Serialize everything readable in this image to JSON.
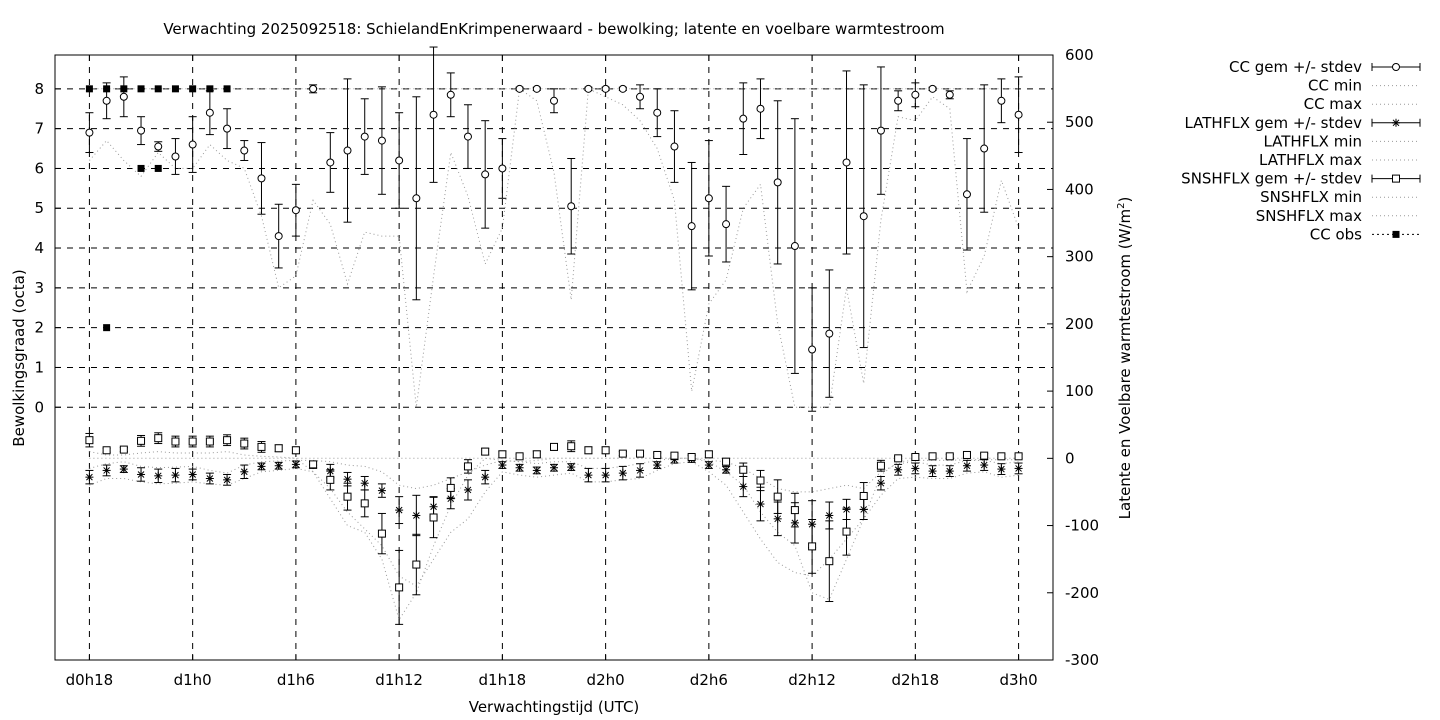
{
  "chart_data": {
    "type": "line",
    "title": "Verwachting 2025092518: SchielandEnKrimpenerwaard - bewolking; latente en voelbare warmtestroom",
    "xlabel": "Verwachtingstijd (UTC)",
    "ylabel": "Bewolkingsgraad (octa)",
    "y2label": "Latente en Voelbare warmtestroom (W/m",
    "y2label_sup": "2",
    "y2label_end": ")",
    "x_ticks": [
      {
        "hour": 18,
        "label": "d0h18"
      },
      {
        "hour": 24,
        "label": "d1h0"
      },
      {
        "hour": 30,
        "label": "d1h6"
      },
      {
        "hour": 36,
        "label": "d1h12"
      },
      {
        "hour": 42,
        "label": "d1h18"
      },
      {
        "hour": 48,
        "label": "d2h0"
      },
      {
        "hour": 54,
        "label": "d2h6"
      },
      {
        "hour": 60,
        "label": "d2h12"
      },
      {
        "hour": 66,
        "label": "d2h18"
      },
      {
        "hour": 72,
        "label": "d3h0"
      }
    ],
    "xlim": [
      16,
      74
    ],
    "y1_ticks": [
      "0",
      "1",
      "2",
      "3",
      "4",
      "5",
      "6",
      "7",
      "8"
    ],
    "y1_range_mapped": [
      -6.35,
      8.85
    ],
    "y2_ticks": [
      "-300",
      "-200",
      "-100",
      "0",
      "100",
      "200",
      "300",
      "400",
      "500",
      "600"
    ],
    "y2lim": [
      -300,
      600
    ],
    "grid": true,
    "legend_placement": "outside-right",
    "legend": [
      {
        "label": "CC gem +/- stdev",
        "style": "errorbar-circle"
      },
      {
        "label": "CC min",
        "style": "dotted"
      },
      {
        "label": "CC max",
        "style": "dotted"
      },
      {
        "label": "LATHFLX gem +/- stdev",
        "style": "errorbar-star"
      },
      {
        "label": "LATHFLX min",
        "style": "dotted"
      },
      {
        "label": "LATHFLX max",
        "style": "dotted"
      },
      {
        "label": "SNSHFLX gem +/- stdev",
        "style": "errorbar-square"
      },
      {
        "label": "SNSHFLX min",
        "style": "dotted"
      },
      {
        "label": "SNSHFLX max",
        "style": "dotted"
      },
      {
        "label": "CC obs",
        "style": "filled-square-dotted"
      }
    ],
    "x_hours": [
      18,
      19,
      20,
      21,
      22,
      23,
      24,
      25,
      26,
      27,
      28,
      29,
      30,
      31,
      32,
      33,
      34,
      35,
      36,
      37,
      38,
      39,
      40,
      41,
      42,
      43,
      44,
      45,
      46,
      47,
      48,
      49,
      50,
      51,
      52,
      53,
      54,
      55,
      56,
      57,
      58,
      59,
      60,
      61,
      62,
      63,
      64,
      65,
      66,
      67,
      68,
      69,
      70,
      71,
      72
    ],
    "series": [
      {
        "name": "CC gem +/- stdev",
        "axis": "y1",
        "mean": [
          6.9,
          7.7,
          7.8,
          6.95,
          6.55,
          6.3,
          6.6,
          7.4,
          7.0,
          6.45,
          5.75,
          4.3,
          4.95,
          8.0,
          6.15,
          6.45,
          6.8,
          6.7,
          6.2,
          5.25,
          7.35,
          7.85,
          6.8,
          5.85,
          6.0,
          8.0,
          8.0,
          7.7,
          5.05,
          8.0,
          8.0,
          8.0,
          7.8,
          7.4,
          6.55,
          4.55,
          5.25,
          4.6,
          7.25,
          7.5,
          5.65,
          4.05,
          1.45,
          1.85,
          6.15,
          4.8,
          6.95,
          7.7,
          7.85,
          8.0,
          7.85,
          5.35,
          6.5,
          7.7,
          7.35
        ],
        "stdev": [
          0.5,
          0.45,
          0.5,
          0.35,
          0.12,
          0.45,
          0.7,
          0.55,
          0.5,
          0.25,
          0.9,
          0.8,
          0.65,
          0.1,
          0.75,
          1.8,
          0.95,
          1.35,
          1.2,
          2.55,
          1.7,
          0.55,
          0.8,
          1.35,
          0.75,
          0.04,
          0.04,
          0.3,
          1.2,
          0.04,
          0.04,
          0.04,
          0.3,
          0.6,
          0.9,
          1.6,
          1.45,
          0.95,
          0.9,
          0.75,
          2.05,
          3.2,
          1.55,
          1.6,
          2.3,
          3.3,
          1.6,
          0.25,
          0.3,
          0.04,
          0.1,
          1.4,
          1.6,
          0.55,
          0.95
        ]
      },
      {
        "name": "CC min",
        "axis": "y1",
        "values": [
          6.2,
          6.7,
          6.2,
          5.8,
          6.4,
          6.0,
          6.0,
          6.6,
          6.2,
          6.0,
          4.8,
          3.0,
          3.3,
          5.2,
          4.6,
          3.1,
          4.4,
          4.3,
          4.3,
          0.0,
          3.3,
          6.4,
          5.3,
          3.6,
          4.5,
          8.0,
          7.7,
          5.9,
          2.7,
          8.0,
          7.8,
          7.6,
          7.2,
          6.5,
          5.2,
          0.4,
          2.6,
          3.2,
          5.0,
          5.6,
          2.1,
          0.0,
          0.0,
          0.0,
          3.0,
          0.6,
          4.7,
          7.3,
          7.2,
          7.8,
          7.5,
          2.9,
          3.8,
          5.7,
          4.5
        ]
      },
      {
        "name": "CC max",
        "axis": "y1",
        "values": [
          8,
          8,
          8,
          8,
          8,
          8,
          8,
          8,
          8,
          8,
          8,
          8,
          8,
          8,
          8,
          8,
          8,
          8,
          8,
          8,
          8,
          8,
          8,
          8,
          8,
          8,
          8,
          8,
          8,
          8,
          8,
          8,
          8,
          8,
          8,
          8,
          8,
          8,
          8,
          8,
          8,
          8,
          8,
          8,
          8,
          8,
          8,
          8,
          8,
          8,
          8,
          8,
          8,
          8,
          8
        ]
      },
      {
        "name": "LATHFLX gem +/- stdev",
        "axis": "y2",
        "mean": [
          -28,
          -18,
          -16,
          -24,
          -26,
          -25,
          -24,
          -30,
          -32,
          -20,
          -12,
          -11,
          -9,
          -10,
          -19,
          -31,
          -37,
          -48,
          -77,
          -85,
          -72,
          -60,
          -47,
          -28,
          -10,
          -14,
          -18,
          -14,
          -13,
          -25,
          -25,
          -22,
          -18,
          -10,
          -2,
          -1,
          -10,
          -17,
          -42,
          -68,
          -90,
          -96,
          -98,
          -85,
          -76,
          -76,
          -37,
          -17,
          -15,
          -19,
          -19,
          -11,
          -10,
          -16,
          -15
        ],
        "stdev": [
          10,
          8,
          5,
          10,
          10,
          10,
          8,
          8,
          8,
          10,
          5,
          5,
          5,
          5,
          10,
          10,
          10,
          10,
          20,
          30,
          15,
          15,
          15,
          10,
          5,
          5,
          5,
          5,
          5,
          10,
          10,
          10,
          10,
          5,
          5,
          5,
          5,
          5,
          15,
          25,
          25,
          30,
          35,
          20,
          15,
          15,
          10,
          8,
          8,
          8,
          8,
          8,
          8,
          8,
          8
        ]
      },
      {
        "name": "LATHFLX min",
        "axis": "y2",
        "values": [
          -40,
          -30,
          -30,
          -35,
          -38,
          -37,
          -35,
          -38,
          -40,
          -30,
          -20,
          -18,
          -15,
          -20,
          -45,
          -80,
          -105,
          -130,
          -175,
          -190,
          -150,
          -110,
          -90,
          -50,
          -20,
          -25,
          -28,
          -25,
          -22,
          -35,
          -35,
          -32,
          -30,
          -18,
          -8,
          -5,
          -20,
          -40,
          -80,
          -120,
          -155,
          -170,
          -175,
          -150,
          -120,
          -90,
          -55,
          -30,
          -28,
          -30,
          -30,
          -22,
          -20,
          -28,
          -25
        ]
      },
      {
        "name": "LATHFLX max",
        "axis": "y2",
        "values": [
          -15,
          -8,
          -5,
          -12,
          -14,
          -13,
          -12,
          -18,
          -22,
          -10,
          -5,
          -4,
          -3,
          -3,
          -5,
          -10,
          -12,
          -20,
          -40,
          -45,
          -40,
          -30,
          -20,
          -10,
          -3,
          -5,
          -8,
          -5,
          -5,
          -15,
          -15,
          -12,
          -8,
          -3,
          0,
          0,
          -3,
          -5,
          -15,
          -30,
          -45,
          -50,
          -50,
          -45,
          -40,
          -45,
          -20,
          -8,
          -5,
          -10,
          -10,
          -3,
          -3,
          -8,
          -5
        ]
      },
      {
        "name": "SNSHFLX gem +/- stdev",
        "axis": "y2",
        "mean": [
          27,
          12,
          13,
          26,
          30,
          25,
          25,
          25,
          27,
          22,
          17,
          15,
          12,
          -9,
          -32,
          -57,
          -67,
          -112,
          -192,
          -158,
          -88,
          -44,
          -12,
          10,
          6,
          3,
          6,
          17,
          18,
          12,
          12,
          7,
          7,
          5,
          4,
          2,
          6,
          -5,
          -17,
          -33,
          -57,
          -77,
          -131,
          -153,
          -109,
          -56,
          -11,
          0,
          2,
          3,
          3,
          5,
          4,
          3,
          3
        ],
        "stdev": [
          10,
          3,
          3,
          8,
          8,
          8,
          8,
          8,
          8,
          8,
          8,
          5,
          5,
          5,
          15,
          20,
          20,
          30,
          55,
          45,
          30,
          15,
          10,
          5,
          5,
          3,
          5,
          5,
          8,
          5,
          5,
          3,
          3,
          3,
          3,
          3,
          5,
          5,
          10,
          15,
          25,
          25,
          40,
          60,
          35,
          20,
          8,
          3,
          3,
          3,
          3,
          3,
          3,
          3,
          3
        ]
      },
      {
        "name": "SNSHFLX min",
        "axis": "y2",
        "values": [
          10,
          5,
          5,
          8,
          10,
          8,
          8,
          8,
          10,
          5,
          3,
          2,
          0,
          -20,
          -60,
          -100,
          -110,
          -150,
          -240,
          -200,
          -130,
          -70,
          -25,
          0,
          -3,
          -5,
          -3,
          0,
          0,
          0,
          0,
          0,
          0,
          0,
          0,
          0,
          -5,
          -20,
          -40,
          -80,
          -110,
          -130,
          -200,
          -210,
          -150,
          -90,
          -25,
          -5,
          -3,
          -3,
          -3,
          -2,
          -2,
          -2,
          -2
        ]
      },
      {
        "name": "SNSHFLX max",
        "axis": "y2",
        "values": [
          0,
          0,
          0,
          0,
          0,
          0,
          0,
          0,
          0,
          0,
          0,
          0,
          0,
          0,
          0,
          0,
          0,
          0,
          0,
          0,
          0,
          0,
          0,
          0,
          0,
          0,
          0,
          0,
          0,
          0,
          0,
          0,
          0,
          0,
          0,
          0,
          0,
          0,
          0,
          0,
          0,
          0,
          0,
          0,
          0,
          0,
          0,
          0,
          0,
          0,
          0,
          0,
          0,
          0,
          0
        ]
      },
      {
        "name": "CC obs",
        "axis": "y1",
        "points": [
          {
            "hour": 18,
            "value": 8
          },
          {
            "hour": 19,
            "value": 8
          },
          {
            "hour": 19,
            "value": 2
          },
          {
            "hour": 20,
            "value": 8
          },
          {
            "hour": 21,
            "value": 8
          },
          {
            "hour": 21,
            "value": 6
          },
          {
            "hour": 22,
            "value": 8
          },
          {
            "hour": 22,
            "value": 6
          },
          {
            "hour": 23,
            "value": 8
          },
          {
            "hour": 24,
            "value": 8
          },
          {
            "hour": 25,
            "value": 8
          },
          {
            "hour": 26,
            "value": 8
          }
        ]
      }
    ]
  }
}
